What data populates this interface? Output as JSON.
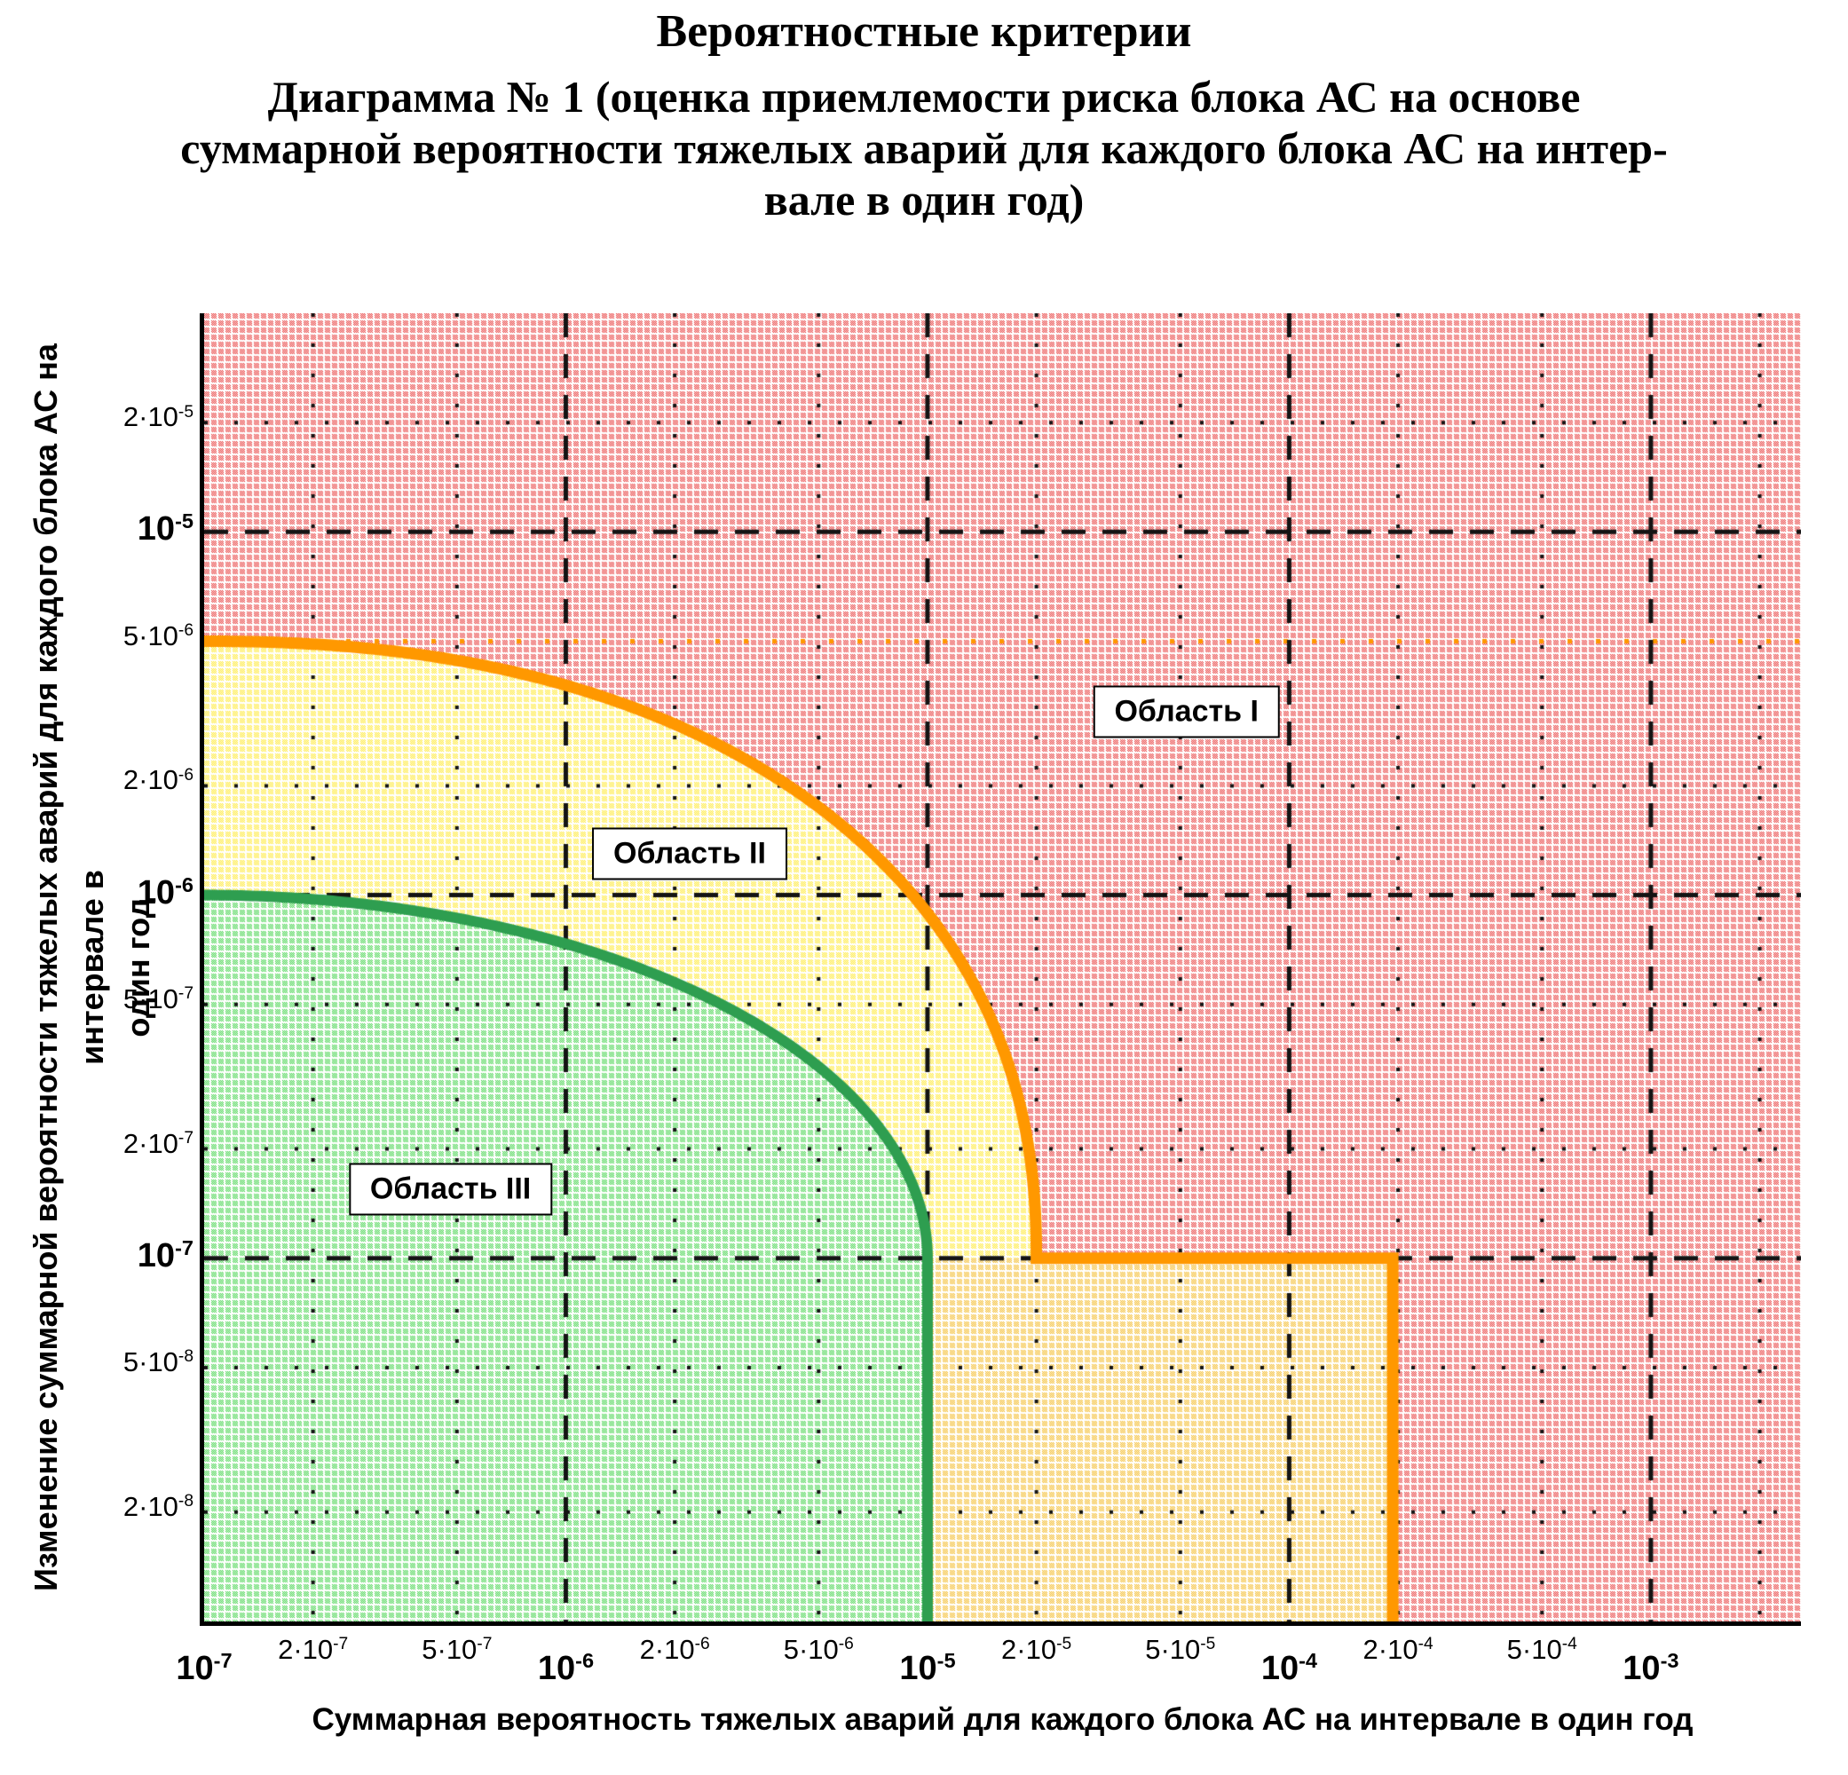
{
  "page": {
    "title": "Вероятностные критерии",
    "subtitle_lines": [
      "Диаграмма № 1 (оценка приемлемости риска блока АС на основе",
      "суммарной вероятности тяжелых аварий для каждого блока АС на интер-",
      "вале в один год)"
    ]
  },
  "axes": {
    "x_title": "Суммарная вероятность тяжелых аварий для каждого блока АС на интервале в один год",
    "y_title_line1": "Изменение суммарной вероятности тяжелых аварий для каждого блока АС на интервале  в",
    "y_title_line2": "один год"
  },
  "regions": [
    {
      "id": "I",
      "label": "Область I"
    },
    {
      "id": "II",
      "label": "Область II"
    },
    {
      "id": "III",
      "label": "Область III"
    }
  ],
  "chart_data": {
    "type": "area",
    "title": "Диаграмма № 1",
    "xlabel": "Суммарная вероятность тяжелых аварий для каждого блока АС на интервале в один год",
    "ylabel": "Изменение суммарной вероятности тяжелых аварий для каждого блока АС на интервале в один год",
    "log_scale": true,
    "x_range": [
      1e-07,
      0.0026
    ],
    "y_range": [
      1e-08,
      4e-05
    ],
    "x_ticks": [
      {
        "base": "10",
        "exp": "-7",
        "value": 1e-07,
        "major": true
      },
      {
        "base": "2·10",
        "exp": "-7",
        "value": 2e-07,
        "major": false
      },
      {
        "base": "5·10",
        "exp": "-7",
        "value": 5e-07,
        "major": false
      },
      {
        "base": "10",
        "exp": "-6",
        "value": 1e-06,
        "major": true
      },
      {
        "base": "2·10",
        "exp": "-6",
        "value": 2e-06,
        "major": false
      },
      {
        "base": "5·10",
        "exp": "-6",
        "value": 5e-06,
        "major": false
      },
      {
        "base": "10",
        "exp": "-5",
        "value": 1e-05,
        "major": true
      },
      {
        "base": "2·10",
        "exp": "-5",
        "value": 2e-05,
        "major": false
      },
      {
        "base": "5·10",
        "exp": "-5",
        "value": 5e-05,
        "major": false
      },
      {
        "base": "10",
        "exp": "-4",
        "value": 0.0001,
        "major": true
      },
      {
        "base": "2·10",
        "exp": "-4",
        "value": 0.0002,
        "major": false
      },
      {
        "base": "5·10",
        "exp": "-4",
        "value": 0.0005,
        "major": false
      },
      {
        "base": "10",
        "exp": "-3",
        "value": 0.001,
        "major": true
      }
    ],
    "y_ticks": [
      {
        "base": "2·10",
        "exp": "-5",
        "value": 2e-05,
        "major": false
      },
      {
        "base": "10",
        "exp": "-5",
        "value": 1e-05,
        "major": true
      },
      {
        "base": "5·10",
        "exp": "-6",
        "value": 5e-06,
        "major": false
      },
      {
        "base": "2·10",
        "exp": "-6",
        "value": 2e-06,
        "major": false
      },
      {
        "base": "10",
        "exp": "-6",
        "value": 1e-06,
        "major": true
      },
      {
        "base": "5·10",
        "exp": "-7",
        "value": 5e-07,
        "major": false
      },
      {
        "base": "2·10",
        "exp": "-7",
        "value": 2e-07,
        "major": false
      },
      {
        "base": "10",
        "exp": "-7",
        "value": 1e-07,
        "major": true
      },
      {
        "base": "5·10",
        "exp": "-8",
        "value": 5e-08,
        "major": false
      },
      {
        "base": "2·10",
        "exp": "-8",
        "value": 2e-08,
        "major": false
      }
    ],
    "grid": {
      "x_major": [
        1e-06,
        1e-05,
        0.0001,
        0.001
      ],
      "x_minor": [
        2e-07,
        5e-07,
        2e-06,
        5e-06,
        2e-05,
        5e-05,
        0.0002,
        0.0005,
        0.002
      ],
      "y_major": [
        1e-05,
        1e-06,
        1e-07
      ],
      "y_minor": [
        2e-05,
        2e-06,
        5e-07,
        2e-07,
        5e-08,
        2e-08
      ],
      "y_minor_orange": [
        5e-06
      ]
    },
    "colors": {
      "region1_hatch": "#E62B2B",
      "region2_hatch": "#FFE822",
      "region2_step_hatch": "#F3B514",
      "region3_hatch": "#33CF3C",
      "orange_boundary": "#FF9800",
      "green_boundary": "#2E9E50",
      "grid_line": "#141414"
    },
    "boundaries": {
      "green": {
        "shape": "superellipse_log",
        "n": 2.0,
        "x_start": 1e-07,
        "y_start": 1e-06,
        "x_end": 1e-05,
        "y_end": 1e-07,
        "drop_to_y": 1e-08
      },
      "orange": {
        "shape": "superellipse_log",
        "n": 2.25,
        "x_start": 1e-07,
        "y_start": 5e-06,
        "x_end": 2e-05,
        "y_end": 1e-07,
        "step_to_x": 0.0002,
        "drop_to_y": 1e-08
      }
    },
    "region_label_anchors": {
      "I": [
        5.2e-05,
        3.2e-06
      ],
      "II": [
        2.2e-06,
        1.3e-06
      ],
      "III": [
        4.8e-07,
        1.55e-07
      ]
    }
  }
}
